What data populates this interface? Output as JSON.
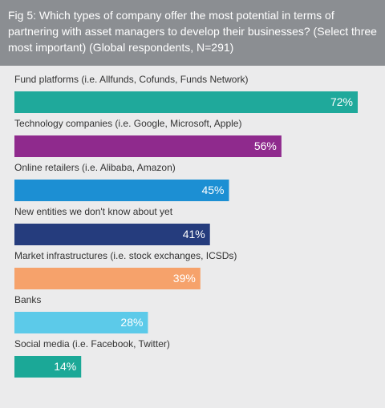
{
  "chart_data": {
    "type": "bar",
    "orientation": "horizontal",
    "title": "Fig 5: Which types of company offer the most potential in terms of partnering with asset managers to develop their businesses? (Select three most important) (Global respondents, N=291)",
    "categories": [
      "Fund platforms (i.e. Allfunds, Cofunds, Funds Network)",
      "Technology companies (i.e. Google, Microsoft, Apple)",
      "Online retailers (i.e. Alibaba, Amazon)",
      "New entities we don't know about yet",
      "Market infrastructures (i.e. stock exchanges, ICSDs)",
      "Banks",
      "Social media (i.e. Facebook, Twitter)"
    ],
    "values": [
      72,
      56,
      45,
      41,
      39,
      28,
      14
    ],
    "value_labels": [
      "72%",
      "56%",
      "45%",
      "41%",
      "39%",
      "28%",
      "14%"
    ],
    "colors": [
      "#1fa99b",
      "#8f2a8d",
      "#1c8fd3",
      "#253c7d",
      "#f6a26b",
      "#5ccae9",
      "#1ba897"
    ]
  }
}
